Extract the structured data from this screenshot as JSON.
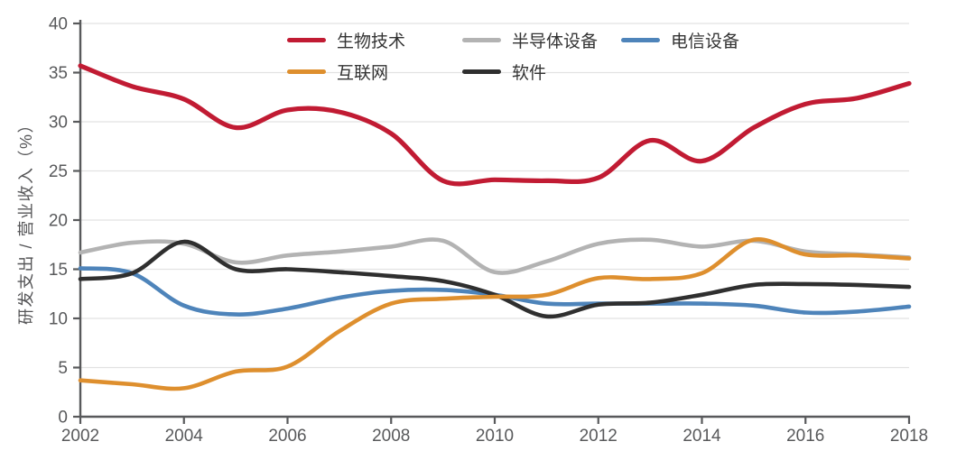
{
  "chart_data": {
    "type": "line",
    "title": "",
    "xlabel": "",
    "ylabel": "研发支出 / 营业收入（%）",
    "xlim": [
      2002,
      2018
    ],
    "ylim": [
      0,
      40
    ],
    "x_ticks": [
      2002,
      2004,
      2006,
      2008,
      2010,
      2012,
      2014,
      2016,
      2018
    ],
    "y_ticks": [
      0,
      5,
      10,
      15,
      20,
      25,
      30,
      35,
      40
    ],
    "grid": "horizontal",
    "legend_position": "top-center",
    "legend_rows": [
      [
        "biotech",
        "semiconductor",
        "telecom"
      ],
      [
        "internet",
        "software"
      ]
    ],
    "x": [
      2002,
      2003,
      2004,
      2005,
      2006,
      2007,
      2008,
      2009,
      2010,
      2011,
      2012,
      2013,
      2014,
      2015,
      2016,
      2017,
      2018
    ],
    "series": [
      {
        "id": "biotech",
        "name": "生物技术",
        "color": "#c11b33",
        "values": [
          35.7,
          33.6,
          32.3,
          29.4,
          31.2,
          31.0,
          28.8,
          24.0,
          24.1,
          24.0,
          24.3,
          28.1,
          26.0,
          29.4,
          31.8,
          32.4,
          33.9
        ]
      },
      {
        "id": "internet",
        "name": "互联网",
        "color": "#de8f2e",
        "values": [
          3.7,
          3.3,
          2.9,
          4.6,
          5.1,
          8.7,
          11.5,
          12.0,
          12.2,
          12.4,
          14.1,
          14.0,
          14.6,
          18.0,
          16.5,
          16.4,
          16.1
        ]
      },
      {
        "id": "semiconductor",
        "name": "半导体设备",
        "color": "#b3b3b3",
        "values": [
          16.7,
          17.7,
          17.6,
          15.7,
          16.4,
          16.8,
          17.3,
          17.9,
          14.7,
          15.8,
          17.6,
          18.0,
          17.3,
          17.9,
          16.8,
          16.5,
          16.2
        ]
      },
      {
        "id": "software",
        "name": "软件",
        "color": "#2f2f2f",
        "values": [
          14.0,
          14.6,
          17.8,
          15.0,
          15.0,
          14.7,
          14.3,
          13.8,
          12.4,
          10.2,
          11.4,
          11.6,
          12.4,
          13.4,
          13.5,
          13.4,
          13.2
        ]
      },
      {
        "id": "telecom",
        "name": "电信设备",
        "color": "#4e84ba",
        "values": [
          15.1,
          14.6,
          11.3,
          10.4,
          11.0,
          12.1,
          12.8,
          12.9,
          12.4,
          11.5,
          11.5,
          11.5,
          11.5,
          11.3,
          10.6,
          10.7,
          11.2
        ]
      }
    ],
    "colors": {
      "axis": "#58595b",
      "gridline": "#e2e2e2",
      "tick_label": "#58595b",
      "legend_text": "#333333",
      "background": "#ffffff"
    }
  }
}
